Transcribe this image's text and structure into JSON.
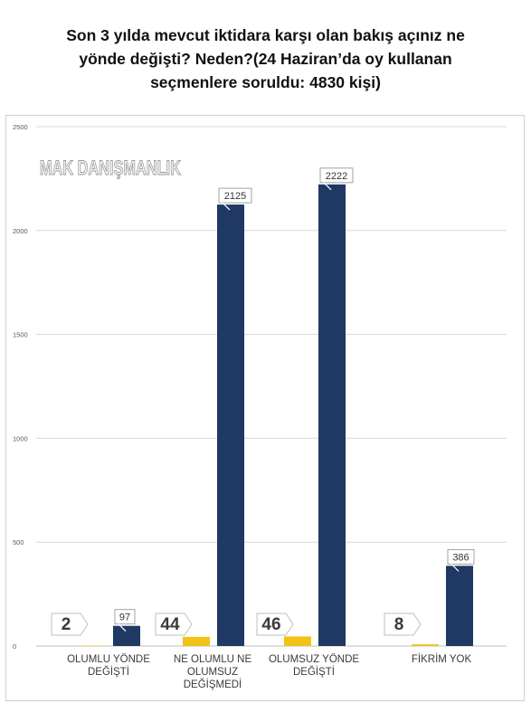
{
  "title_lines": [
    "Son 3 yılda mevcut iktidara karşı olan bakış açınız ne",
    "yönde değişti? Neden?(24 Haziran’da oy kullanan",
    "seçmenlere soruldu: 4830 kişi)"
  ],
  "watermark": "MAK DANIŞMANLIK",
  "colors": {
    "bar_primary": "#1f3864",
    "bar_secondary": "#f2c217",
    "grid": "#d9d9d9",
    "axis_text": "#595959"
  },
  "chart_data": {
    "type": "bar",
    "title": "Son 3 yılda mevcut iktidara karşı olan bakış açınız ne yönde değişti? Neden?(24 Haziran’da oy kullanan seçmenlere soruldu: 4830 kişi)",
    "categories": [
      [
        "OLUMLU YÖNDE",
        "DEĞİŞTİ"
      ],
      [
        "NE OLUMLU NE",
        "OLUMSUZ",
        "DEĞİŞMEDİ"
      ],
      [
        "OLUMSUZ YÖNDE",
        "DEĞİŞTİ"
      ],
      [
        "FİKRİM YOK"
      ]
    ],
    "series": [
      {
        "values": [
          2,
          44,
          46,
          8
        ]
      },
      {
        "values": [
          97,
          2125,
          2222,
          386
        ]
      }
    ],
    "yticks": [
      0,
      500,
      1000,
      1500,
      2000,
      2500
    ],
    "ylim": [
      0,
      2500
    ],
    "grid": true,
    "legend": "none"
  }
}
